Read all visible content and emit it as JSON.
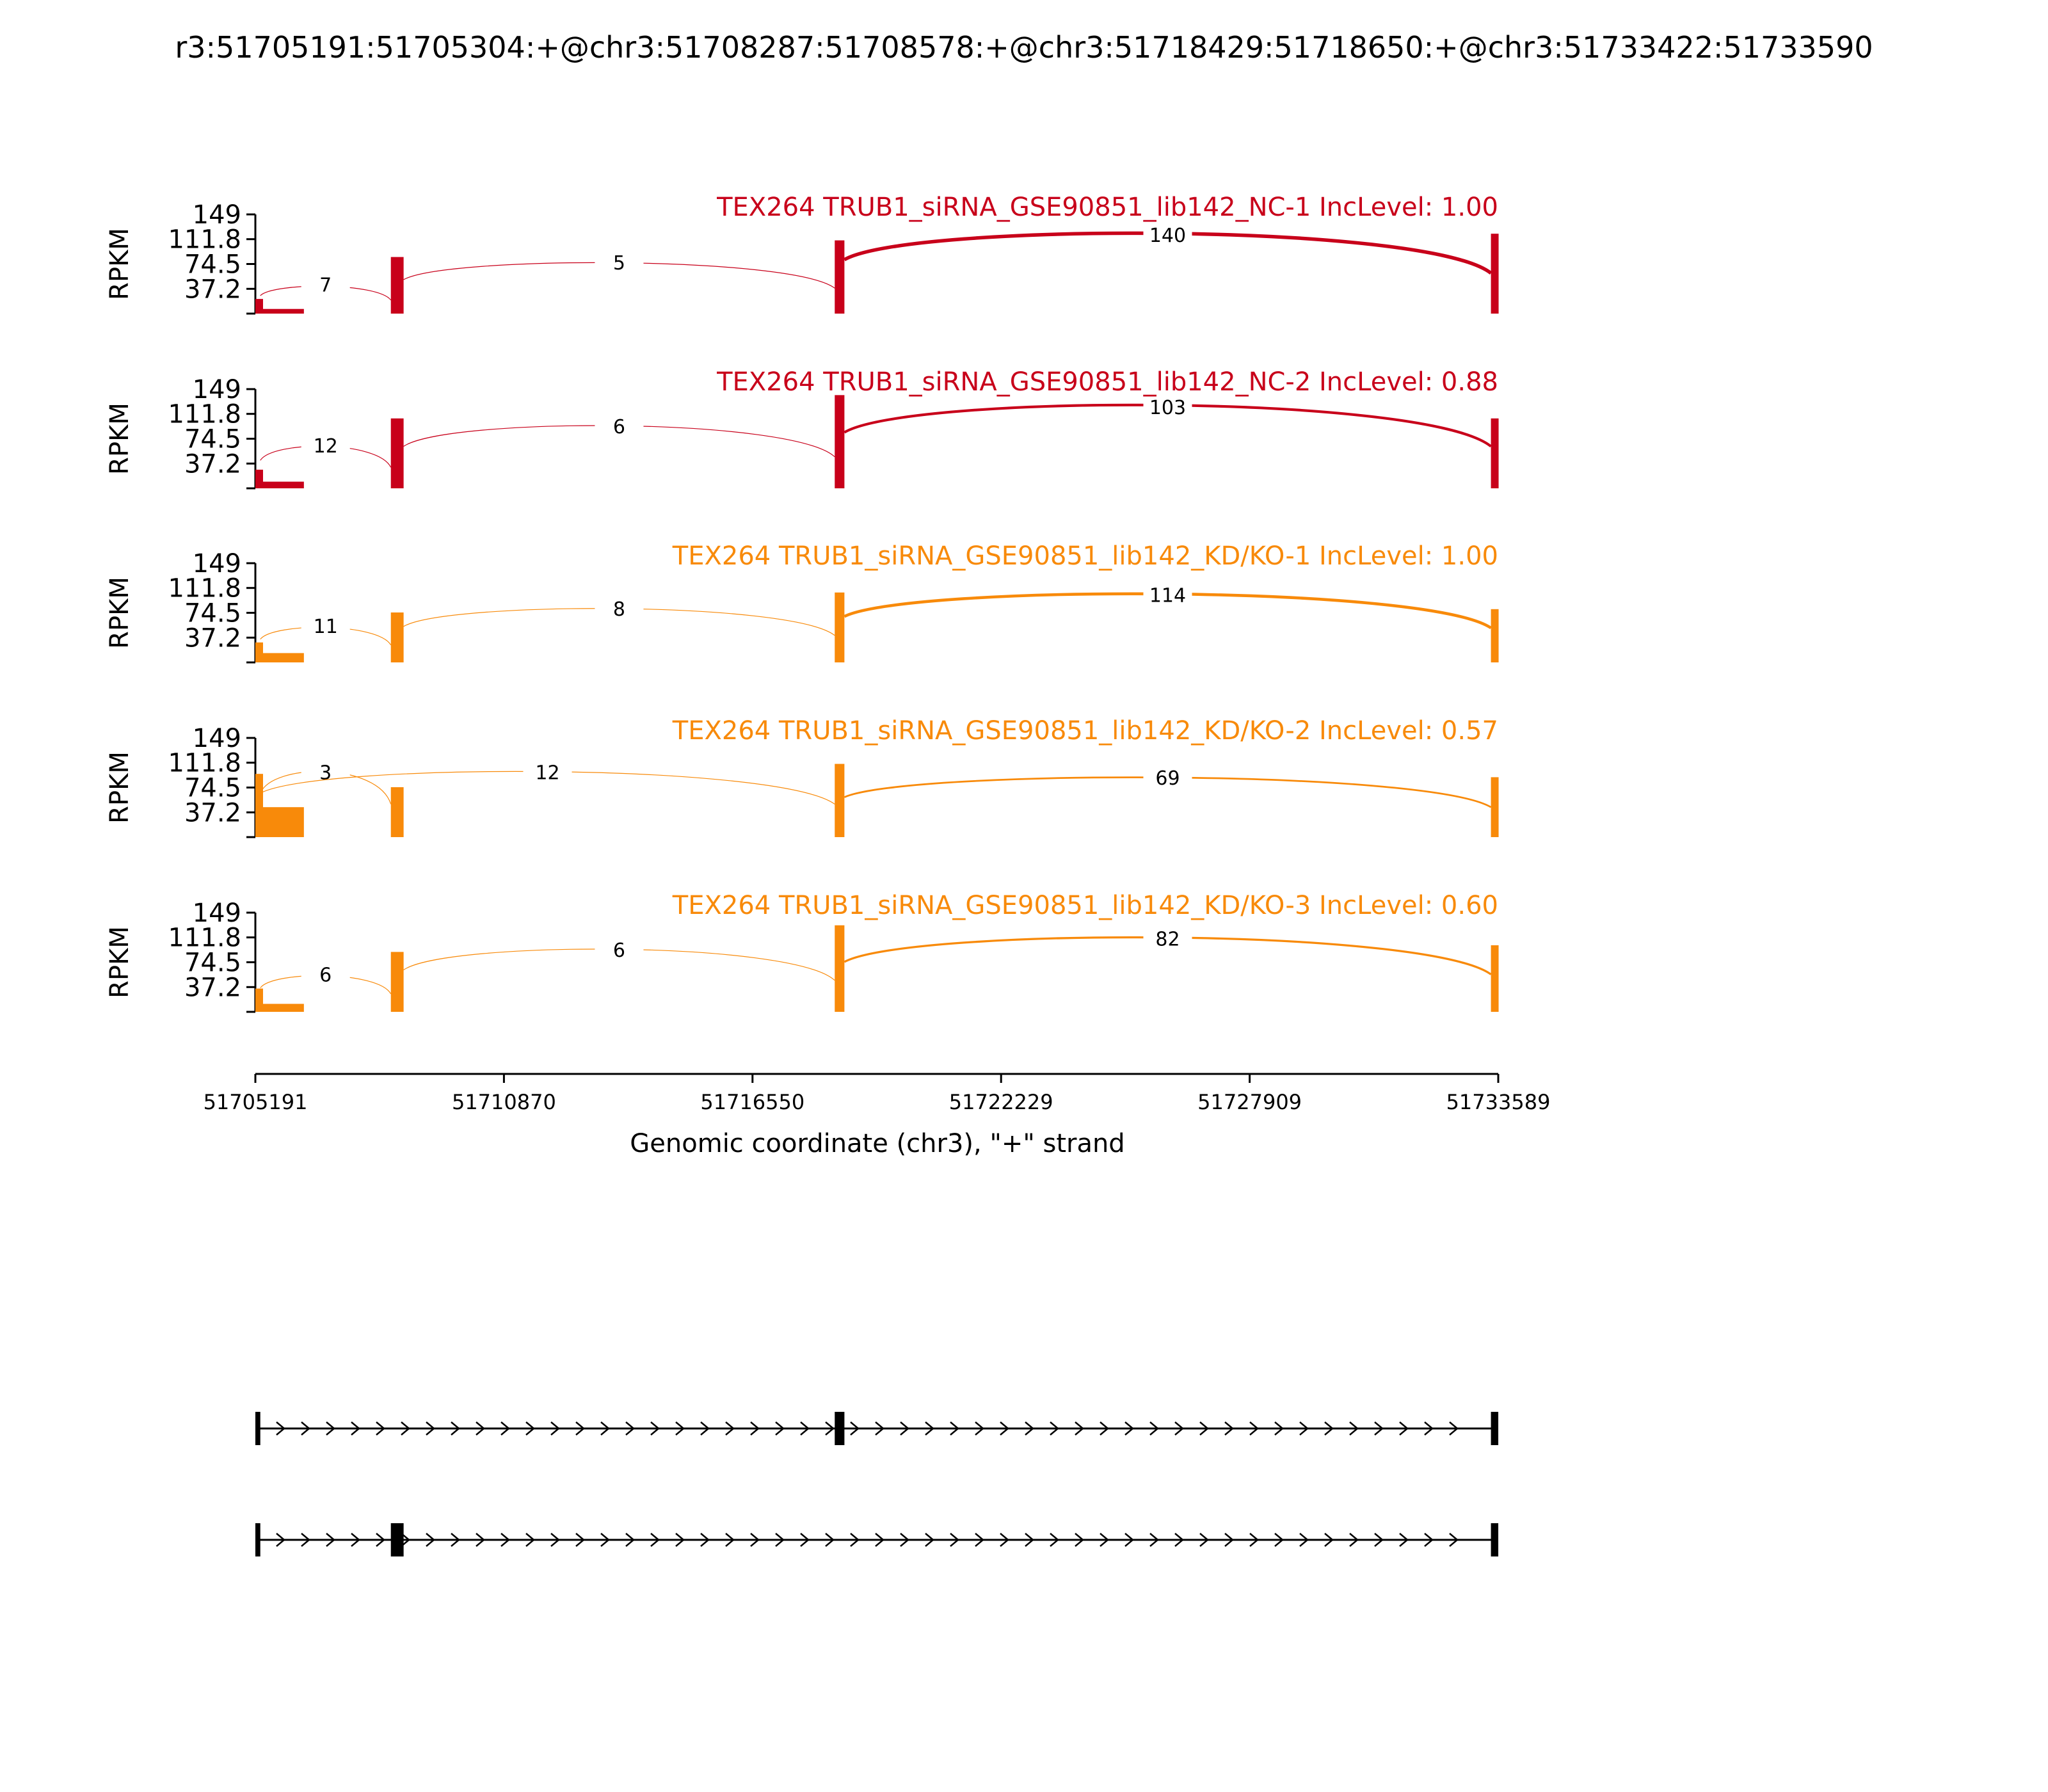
{
  "chart_data": {
    "type": "sashimi",
    "title": "r3:51705191:51705304:+@chr3:51708287:51708578:+@chr3:51718429:51718650:+@chr3:51733422:51733590",
    "ylabel": "RPKM",
    "ylim": [
      0,
      149
    ],
    "yticks": [
      "149",
      "111.8",
      "74.5",
      "37.2"
    ],
    "x_range": [
      51705191,
      51733589
    ],
    "xticks": [
      "51705191",
      "51710870",
      "51716550",
      "51722229",
      "51727909",
      "51733589"
    ],
    "xlabel": "Genomic coordinate (chr3), \"+\" strand",
    "exons": [
      {
        "start": 51705191,
        "end": 51705304
      },
      {
        "start": 51708287,
        "end": 51708578
      },
      {
        "start": 51718429,
        "end": 51718650
      },
      {
        "start": 51733422,
        "end": 51733590
      }
    ],
    "panels": [
      {
        "label": "TEX264 TRUB1_siRNA_GSE90851_lib142_NC-1 IncLevel: 1.00",
        "color": "#c8001a",
        "junctions": [
          {
            "from": 51705304,
            "to": 51708287,
            "count": "7",
            "peak": 45
          },
          {
            "from": 51708578,
            "to": 51718429,
            "count": "5",
            "peak": 85
          },
          {
            "from": 51718650,
            "to": 51733422,
            "count": "140",
            "peak": 135
          }
        ],
        "coverage": [
          {
            "start": 51705191,
            "end": 51705304,
            "height": 22
          },
          {
            "start": 51705304,
            "end": 51706300,
            "height": 7
          },
          {
            "start": 51708287,
            "end": 51708578,
            "height": 85
          },
          {
            "start": 51718429,
            "end": 51718650,
            "height": 110
          },
          {
            "start": 51733422,
            "end": 51733590,
            "height": 120
          }
        ]
      },
      {
        "label": "TEX264 TRUB1_siRNA_GSE90851_lib142_NC-2 IncLevel: 0.88",
        "color": "#c8001a",
        "junctions": [
          {
            "from": 51705304,
            "to": 51708287,
            "count": "12",
            "peak": 70
          },
          {
            "from": 51708578,
            "to": 51718429,
            "count": "6",
            "peak": 105
          },
          {
            "from": 51718650,
            "to": 51733422,
            "count": "103",
            "peak": 140
          }
        ],
        "coverage": [
          {
            "start": 51705191,
            "end": 51705304,
            "height": 28
          },
          {
            "start": 51705304,
            "end": 51706300,
            "height": 10
          },
          {
            "start": 51708287,
            "end": 51708578,
            "height": 105
          },
          {
            "start": 51718429,
            "end": 51718650,
            "height": 140
          },
          {
            "start": 51733422,
            "end": 51733590,
            "height": 105
          }
        ]
      },
      {
        "label": "TEX264 TRUB1_siRNA_GSE90851_lib142_KD/KO-1 IncLevel: 1.00",
        "color": "#f88a0a",
        "junctions": [
          {
            "from": 51705304,
            "to": 51708287,
            "count": "11",
            "peak": 58
          },
          {
            "from": 51708578,
            "to": 51718429,
            "count": "8",
            "peak": 90
          },
          {
            "from": 51718650,
            "to": 51733422,
            "count": "114",
            "peak": 115
          }
        ],
        "coverage": [
          {
            "start": 51705191,
            "end": 51705304,
            "height": 30
          },
          {
            "start": 51705304,
            "end": 51706300,
            "height": 14
          },
          {
            "start": 51708287,
            "end": 51708578,
            "height": 75
          },
          {
            "start": 51718429,
            "end": 51718650,
            "height": 105
          },
          {
            "start": 51733422,
            "end": 51733590,
            "height": 80
          }
        ]
      },
      {
        "label": "TEX264 TRUB1_siRNA_GSE90851_lib142_KD/KO-2 IncLevel: 0.57",
        "color": "#f88a0a",
        "junctions": [
          {
            "from": 51705304,
            "to": 51708287,
            "count": "3",
            "peak": 110
          },
          {
            "from": 51705304,
            "to": 51718429,
            "count": "12",
            "peak": 110
          },
          {
            "from": 51718650,
            "to": 51733422,
            "count": "69",
            "peak": 100
          }
        ],
        "coverage": [
          {
            "start": 51705191,
            "end": 51705304,
            "height": 95
          },
          {
            "start": 51705304,
            "end": 51706300,
            "height": 45
          },
          {
            "start": 51708287,
            "end": 51708578,
            "height": 75
          },
          {
            "start": 51718429,
            "end": 51718650,
            "height": 110
          },
          {
            "start": 51733422,
            "end": 51733590,
            "height": 90
          }
        ]
      },
      {
        "label": "TEX264 TRUB1_siRNA_GSE90851_lib142_KD/KO-3 IncLevel: 0.60",
        "color": "#f88a0a",
        "junctions": [
          {
            "from": 51705304,
            "to": 51708287,
            "count": "6",
            "peak": 60
          },
          {
            "from": 51708578,
            "to": 51718429,
            "count": "6",
            "peak": 105
          },
          {
            "from": 51718650,
            "to": 51733422,
            "count": "82",
            "peak": 125
          }
        ],
        "coverage": [
          {
            "start": 51705191,
            "end": 51705304,
            "height": 35
          },
          {
            "start": 51705304,
            "end": 51706300,
            "height": 12
          },
          {
            "start": 51708287,
            "end": 51708578,
            "height": 90
          },
          {
            "start": 51718429,
            "end": 51718650,
            "height": 130
          },
          {
            "start": 51733422,
            "end": 51733590,
            "height": 100
          }
        ]
      }
    ],
    "isoforms": [
      {
        "exons": [
          0,
          2,
          3
        ]
      },
      {
        "exons": [
          0,
          1,
          3
        ]
      }
    ]
  }
}
